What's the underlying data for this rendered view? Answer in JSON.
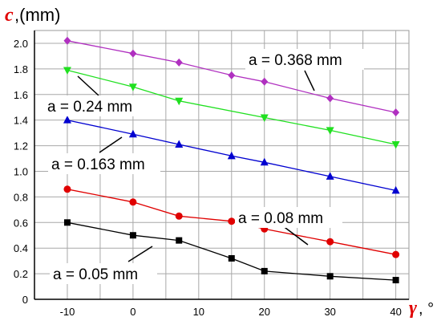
{
  "chart_data": {
    "type": "line",
    "ylabel": {
      "symbol": "c",
      "unit": ",(mm)"
    },
    "xlabel": {
      "symbol": "γ",
      "unit": ", °"
    },
    "xlim": [
      -15,
      42
    ],
    "ylim": [
      0,
      2.1
    ],
    "x_ticks": [
      -10,
      0,
      10,
      20,
      30,
      40
    ],
    "x_tick_labels": [
      "-10",
      "0",
      "10",
      "20",
      "30",
      "40"
    ],
    "y_ticks": [
      0,
      0.2,
      0.4,
      0.6,
      0.8,
      1.0,
      1.2,
      1.4,
      1.6,
      1.8,
      2.0
    ],
    "y_tick_labels": [
      "0",
      "0.2",
      "0.4",
      "0.6",
      "0.8",
      "1.0",
      "1.2",
      "1.4",
      "1.6",
      "1.8",
      "2.0"
    ],
    "x_minor_ticks": [
      -15,
      -10,
      -5,
      0,
      5,
      10,
      15,
      20,
      25,
      30,
      35,
      40
    ],
    "grid": true,
    "series": [
      {
        "name": "a = 0.368 mm",
        "color": "#b030c0",
        "marker": "diamond",
        "x": [
          -10,
          0,
          7,
          15,
          20,
          30,
          40
        ],
        "y": [
          2.02,
          1.92,
          1.85,
          1.75,
          1.7,
          1.57,
          1.46
        ]
      },
      {
        "name": "a = 0.24 mm",
        "color": "#20e020",
        "marker": "triangle-down",
        "x": [
          -10,
          0,
          7,
          20,
          30,
          40
        ],
        "y": [
          1.79,
          1.66,
          1.55,
          1.42,
          1.32,
          1.21
        ]
      },
      {
        "name": "a = 0.163 mm",
        "color": "#0000d0",
        "marker": "triangle-up",
        "x": [
          -10,
          0,
          7,
          15,
          20,
          30,
          40
        ],
        "y": [
          1.4,
          1.29,
          1.21,
          1.12,
          1.07,
          0.96,
          0.85
        ]
      },
      {
        "name": "a = 0.08 mm",
        "color": "#e00000",
        "marker": "circle",
        "x": [
          -10,
          0,
          7,
          15,
          20,
          30,
          40
        ],
        "y": [
          0.86,
          0.76,
          0.65,
          0.61,
          0.55,
          0.45,
          0.35
        ]
      },
      {
        "name": "a = 0.05 mm",
        "color": "#000000",
        "marker": "square",
        "x": [
          -10,
          0,
          7,
          15,
          20,
          30,
          40
        ],
        "y": [
          0.6,
          0.5,
          0.46,
          0.32,
          0.22,
          0.18,
          0.15
        ]
      }
    ]
  }
}
